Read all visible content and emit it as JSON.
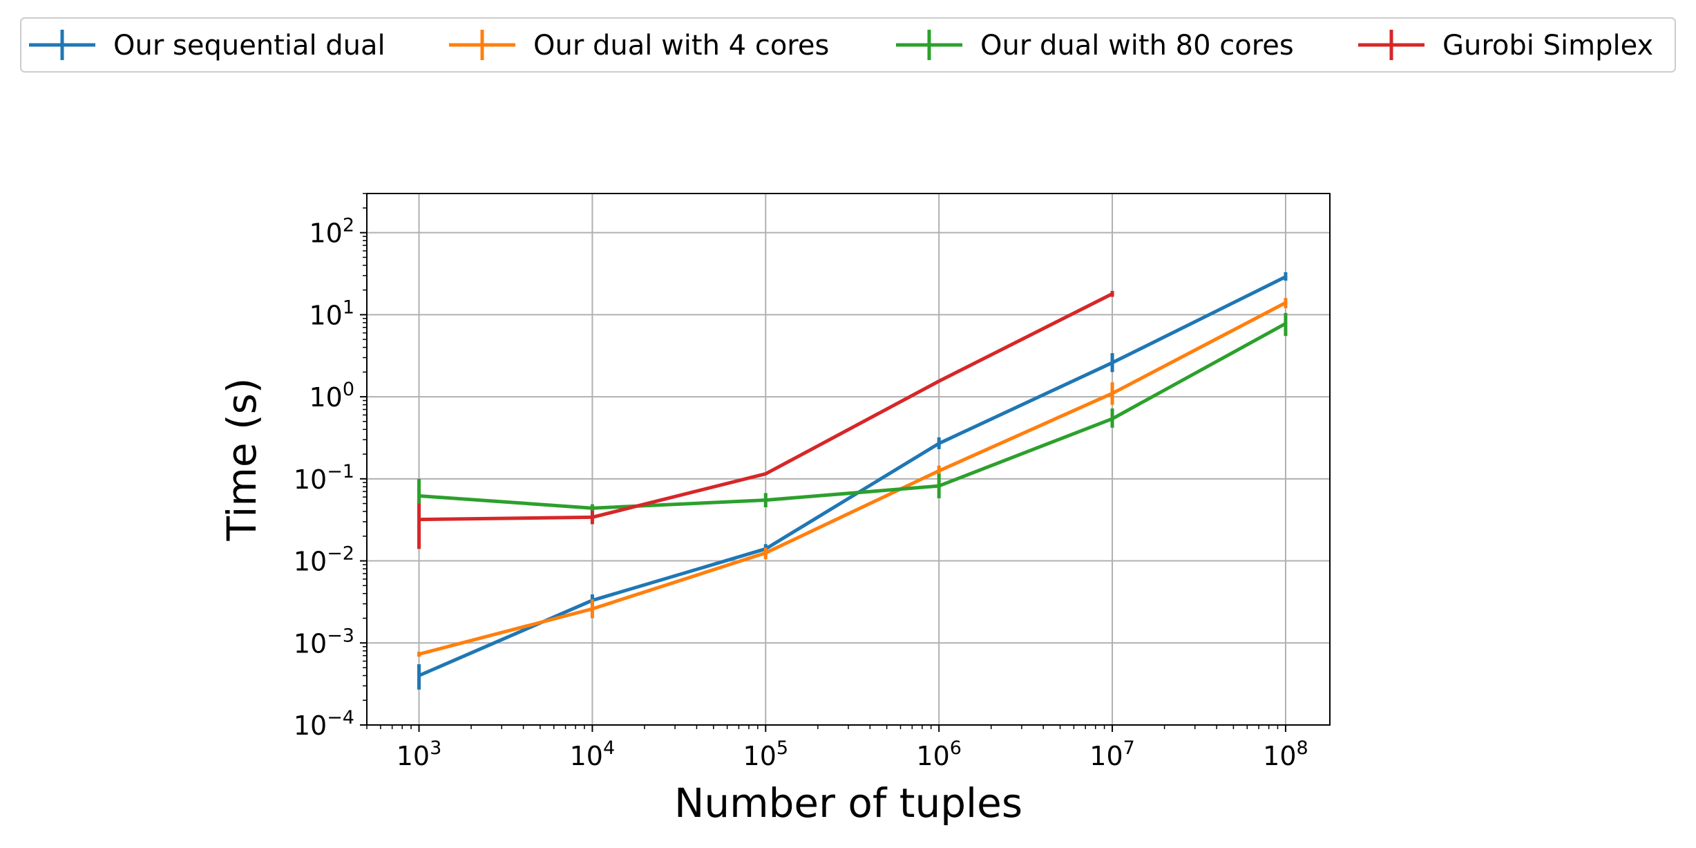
{
  "chart_data": {
    "type": "line",
    "xlabel": "Number of tuples",
    "ylabel": "Time (s)",
    "x_scale": "log",
    "y_scale": "log",
    "xlim": [
      500,
      180000000
    ],
    "ylim": [
      0.0001,
      300
    ],
    "grid": true,
    "legend_placement": "top, above plot",
    "x_ticks": [
      {
        "value": 1000,
        "base": "10",
        "exp": "3"
      },
      {
        "value": 10000,
        "base": "10",
        "exp": "4"
      },
      {
        "value": 100000,
        "base": "10",
        "exp": "5"
      },
      {
        "value": 1000000,
        "base": "10",
        "exp": "6"
      },
      {
        "value": 10000000,
        "base": "10",
        "exp": "7"
      },
      {
        "value": 100000000,
        "base": "10",
        "exp": "8"
      }
    ],
    "y_ticks": [
      {
        "value": 0.0001,
        "base": "10",
        "exp": "−4"
      },
      {
        "value": 0.001,
        "base": "10",
        "exp": "−3"
      },
      {
        "value": 0.01,
        "base": "10",
        "exp": "−2"
      },
      {
        "value": 0.1,
        "base": "10",
        "exp": "−1"
      },
      {
        "value": 1,
        "base": "10",
        "exp": "0"
      },
      {
        "value": 10,
        "base": "10",
        "exp": "1"
      },
      {
        "value": 100,
        "base": "10",
        "exp": "2"
      }
    ],
    "series": [
      {
        "name": "Our sequential dual",
        "color": "#1f77b4",
        "points": [
          {
            "x": 1000,
            "y": 0.0004,
            "lo": 0.00027,
            "hi": 0.00055
          },
          {
            "x": 10000,
            "y": 0.0033,
            "lo": 0.0029,
            "hi": 0.0039
          },
          {
            "x": 100000,
            "y": 0.014,
            "lo": 0.0125,
            "hi": 0.016
          },
          {
            "x": 1000000,
            "y": 0.27,
            "lo": 0.23,
            "hi": 0.32
          },
          {
            "x": 10000000,
            "y": 2.6,
            "lo": 2.0,
            "hi": 3.4
          },
          {
            "x": 100000000,
            "y": 29,
            "lo": 26,
            "hi": 33
          }
        ]
      },
      {
        "name": "Our dual with 4 cores",
        "color": "#ff7f0e",
        "points": [
          {
            "x": 1000,
            "y": 0.00073,
            "lo": 0.00068,
            "hi": 0.00078
          },
          {
            "x": 10000,
            "y": 0.0026,
            "lo": 0.002,
            "hi": 0.0034
          },
          {
            "x": 100000,
            "y": 0.0125,
            "lo": 0.0105,
            "hi": 0.0145
          },
          {
            "x": 1000000,
            "y": 0.125,
            "lo": 0.11,
            "hi": 0.145
          },
          {
            "x": 10000000,
            "y": 1.1,
            "lo": 0.8,
            "hi": 1.5
          },
          {
            "x": 100000000,
            "y": 14,
            "lo": 12,
            "hi": 16
          }
        ]
      },
      {
        "name": "Our dual with 80 cores",
        "color": "#2ca02c",
        "points": [
          {
            "x": 1000,
            "y": 0.062,
            "lo": 0.045,
            "hi": 0.1
          },
          {
            "x": 10000,
            "y": 0.044,
            "lo": 0.039,
            "hi": 0.049
          },
          {
            "x": 100000,
            "y": 0.055,
            "lo": 0.045,
            "hi": 0.067
          },
          {
            "x": 1000000,
            "y": 0.082,
            "lo": 0.058,
            "hi": 0.115
          },
          {
            "x": 10000000,
            "y": 0.54,
            "lo": 0.42,
            "hi": 0.72
          },
          {
            "x": 100000000,
            "y": 7.8,
            "lo": 5.5,
            "hi": 10.5
          }
        ]
      },
      {
        "name": "Gurobi Simplex",
        "color": "#d62728",
        "points": [
          {
            "x": 1000,
            "y": 0.032,
            "lo": 0.014,
            "hi": 0.05
          },
          {
            "x": 10000,
            "y": 0.034,
            "lo": 0.028,
            "hi": 0.041
          },
          {
            "x": 100000,
            "y": 0.115,
            "lo": 0.113,
            "hi": 0.117
          },
          {
            "x": 1000000,
            "y": 1.55,
            "lo": 1.52,
            "hi": 1.58
          },
          {
            "x": 10000000,
            "y": 18,
            "lo": 16.5,
            "hi": 19.5
          }
        ]
      }
    ]
  }
}
